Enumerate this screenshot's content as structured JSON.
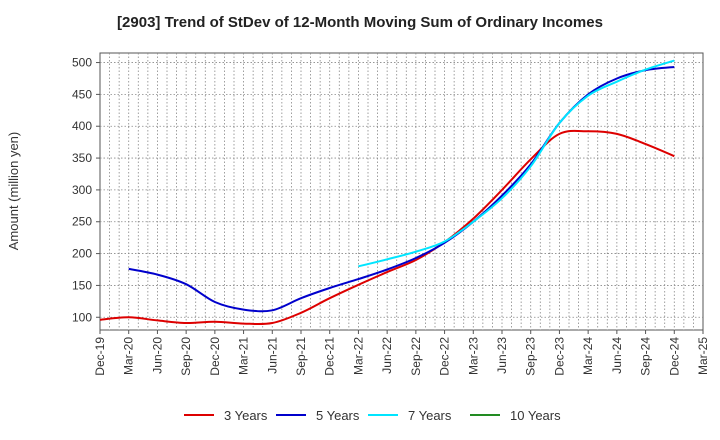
{
  "chart_data": {
    "type": "line",
    "title": "[2903]  Trend of StDev of 12-Month Moving Sum of Ordinary Incomes",
    "xlabel": "",
    "ylabel": "Amount (million yen)",
    "ylim": [
      80,
      515
    ],
    "y_ticks": [
      100,
      150,
      200,
      250,
      300,
      350,
      400,
      450,
      500
    ],
    "grid": true,
    "legend_position": "bottom",
    "x_tick_labels": [
      "Dec-19",
      "Mar-20",
      "Jun-20",
      "Sep-20",
      "Dec-20",
      "Mar-21",
      "Jun-21",
      "Sep-21",
      "Dec-21",
      "Mar-22",
      "Jun-22",
      "Sep-22",
      "Dec-22",
      "Mar-23",
      "Jun-23",
      "Sep-23",
      "Dec-23",
      "Mar-24",
      "Jun-24",
      "Sep-24",
      "Dec-24",
      "Mar-25"
    ],
    "series": [
      {
        "name": "3 Years",
        "color": "#dd0000",
        "values": [
          96,
          100,
          95,
          91,
          93,
          90,
          91,
          107,
          130,
          151,
          171,
          190,
          218,
          255,
          300,
          348,
          388,
          392,
          388,
          372,
          353,
          null
        ]
      },
      {
        "name": "5 Years",
        "color": "#0000cc",
        "values": [
          null,
          176,
          167,
          152,
          124,
          112,
          111,
          130,
          146,
          160,
          175,
          193,
          217,
          250,
          291,
          340,
          405,
          450,
          475,
          488,
          493,
          null
        ]
      },
      {
        "name": "7 Years",
        "color": "#00e5ff",
        "values": [
          null,
          null,
          null,
          null,
          null,
          null,
          null,
          null,
          null,
          180,
          191,
          203,
          219,
          250,
          287,
          337,
          405,
          448,
          470,
          489,
          503,
          null
        ]
      },
      {
        "name": "10 Years",
        "color": "#228b22",
        "values": [
          null,
          null,
          null,
          null,
          null,
          null,
          null,
          null,
          null,
          null,
          null,
          null,
          null,
          null,
          null,
          null,
          null,
          null,
          null,
          null,
          null,
          null
        ]
      }
    ]
  }
}
